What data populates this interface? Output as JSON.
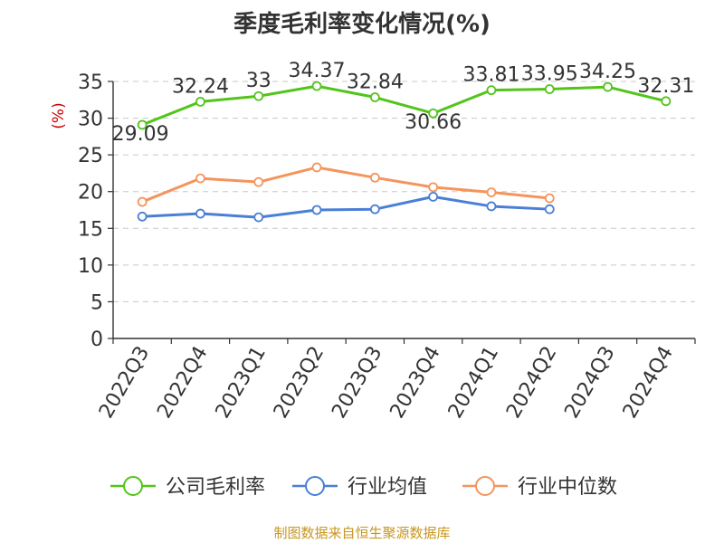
{
  "chart_data": {
    "type": "line",
    "title": "季度毛利率变化情况(%)",
    "ylabel": "(%)",
    "xlabel": "",
    "categories": [
      "2022Q3",
      "2022Q4",
      "2023Q1",
      "2023Q2",
      "2023Q3",
      "2023Q4",
      "2024Q1",
      "2024Q2",
      "2024Q3",
      "2024Q4"
    ],
    "ylim": [
      0,
      35
    ],
    "yticks": [
      0,
      5,
      10,
      15,
      20,
      25,
      30,
      35
    ],
    "grid": true,
    "legend_position": "bottom",
    "series": [
      {
        "name": "公司毛利率",
        "color": "#52c41a",
        "show_labels": true,
        "values": [
          29.09,
          32.24,
          33,
          34.37,
          32.84,
          30.66,
          33.81,
          33.95,
          34.25,
          32.31
        ]
      },
      {
        "name": "行业均值",
        "color": "#4a7fd6",
        "show_labels": false,
        "values": [
          16.6,
          17.0,
          16.5,
          17.5,
          17.6,
          19.3,
          18.0,
          17.6,
          null,
          null
        ]
      },
      {
        "name": "行业中位数",
        "color": "#f5945c",
        "show_labels": false,
        "values": [
          18.6,
          21.8,
          21.3,
          23.3,
          21.9,
          20.6,
          19.9,
          19.1,
          null,
          null
        ]
      }
    ]
  },
  "source_note": "制图数据来自恒生聚源数据库"
}
